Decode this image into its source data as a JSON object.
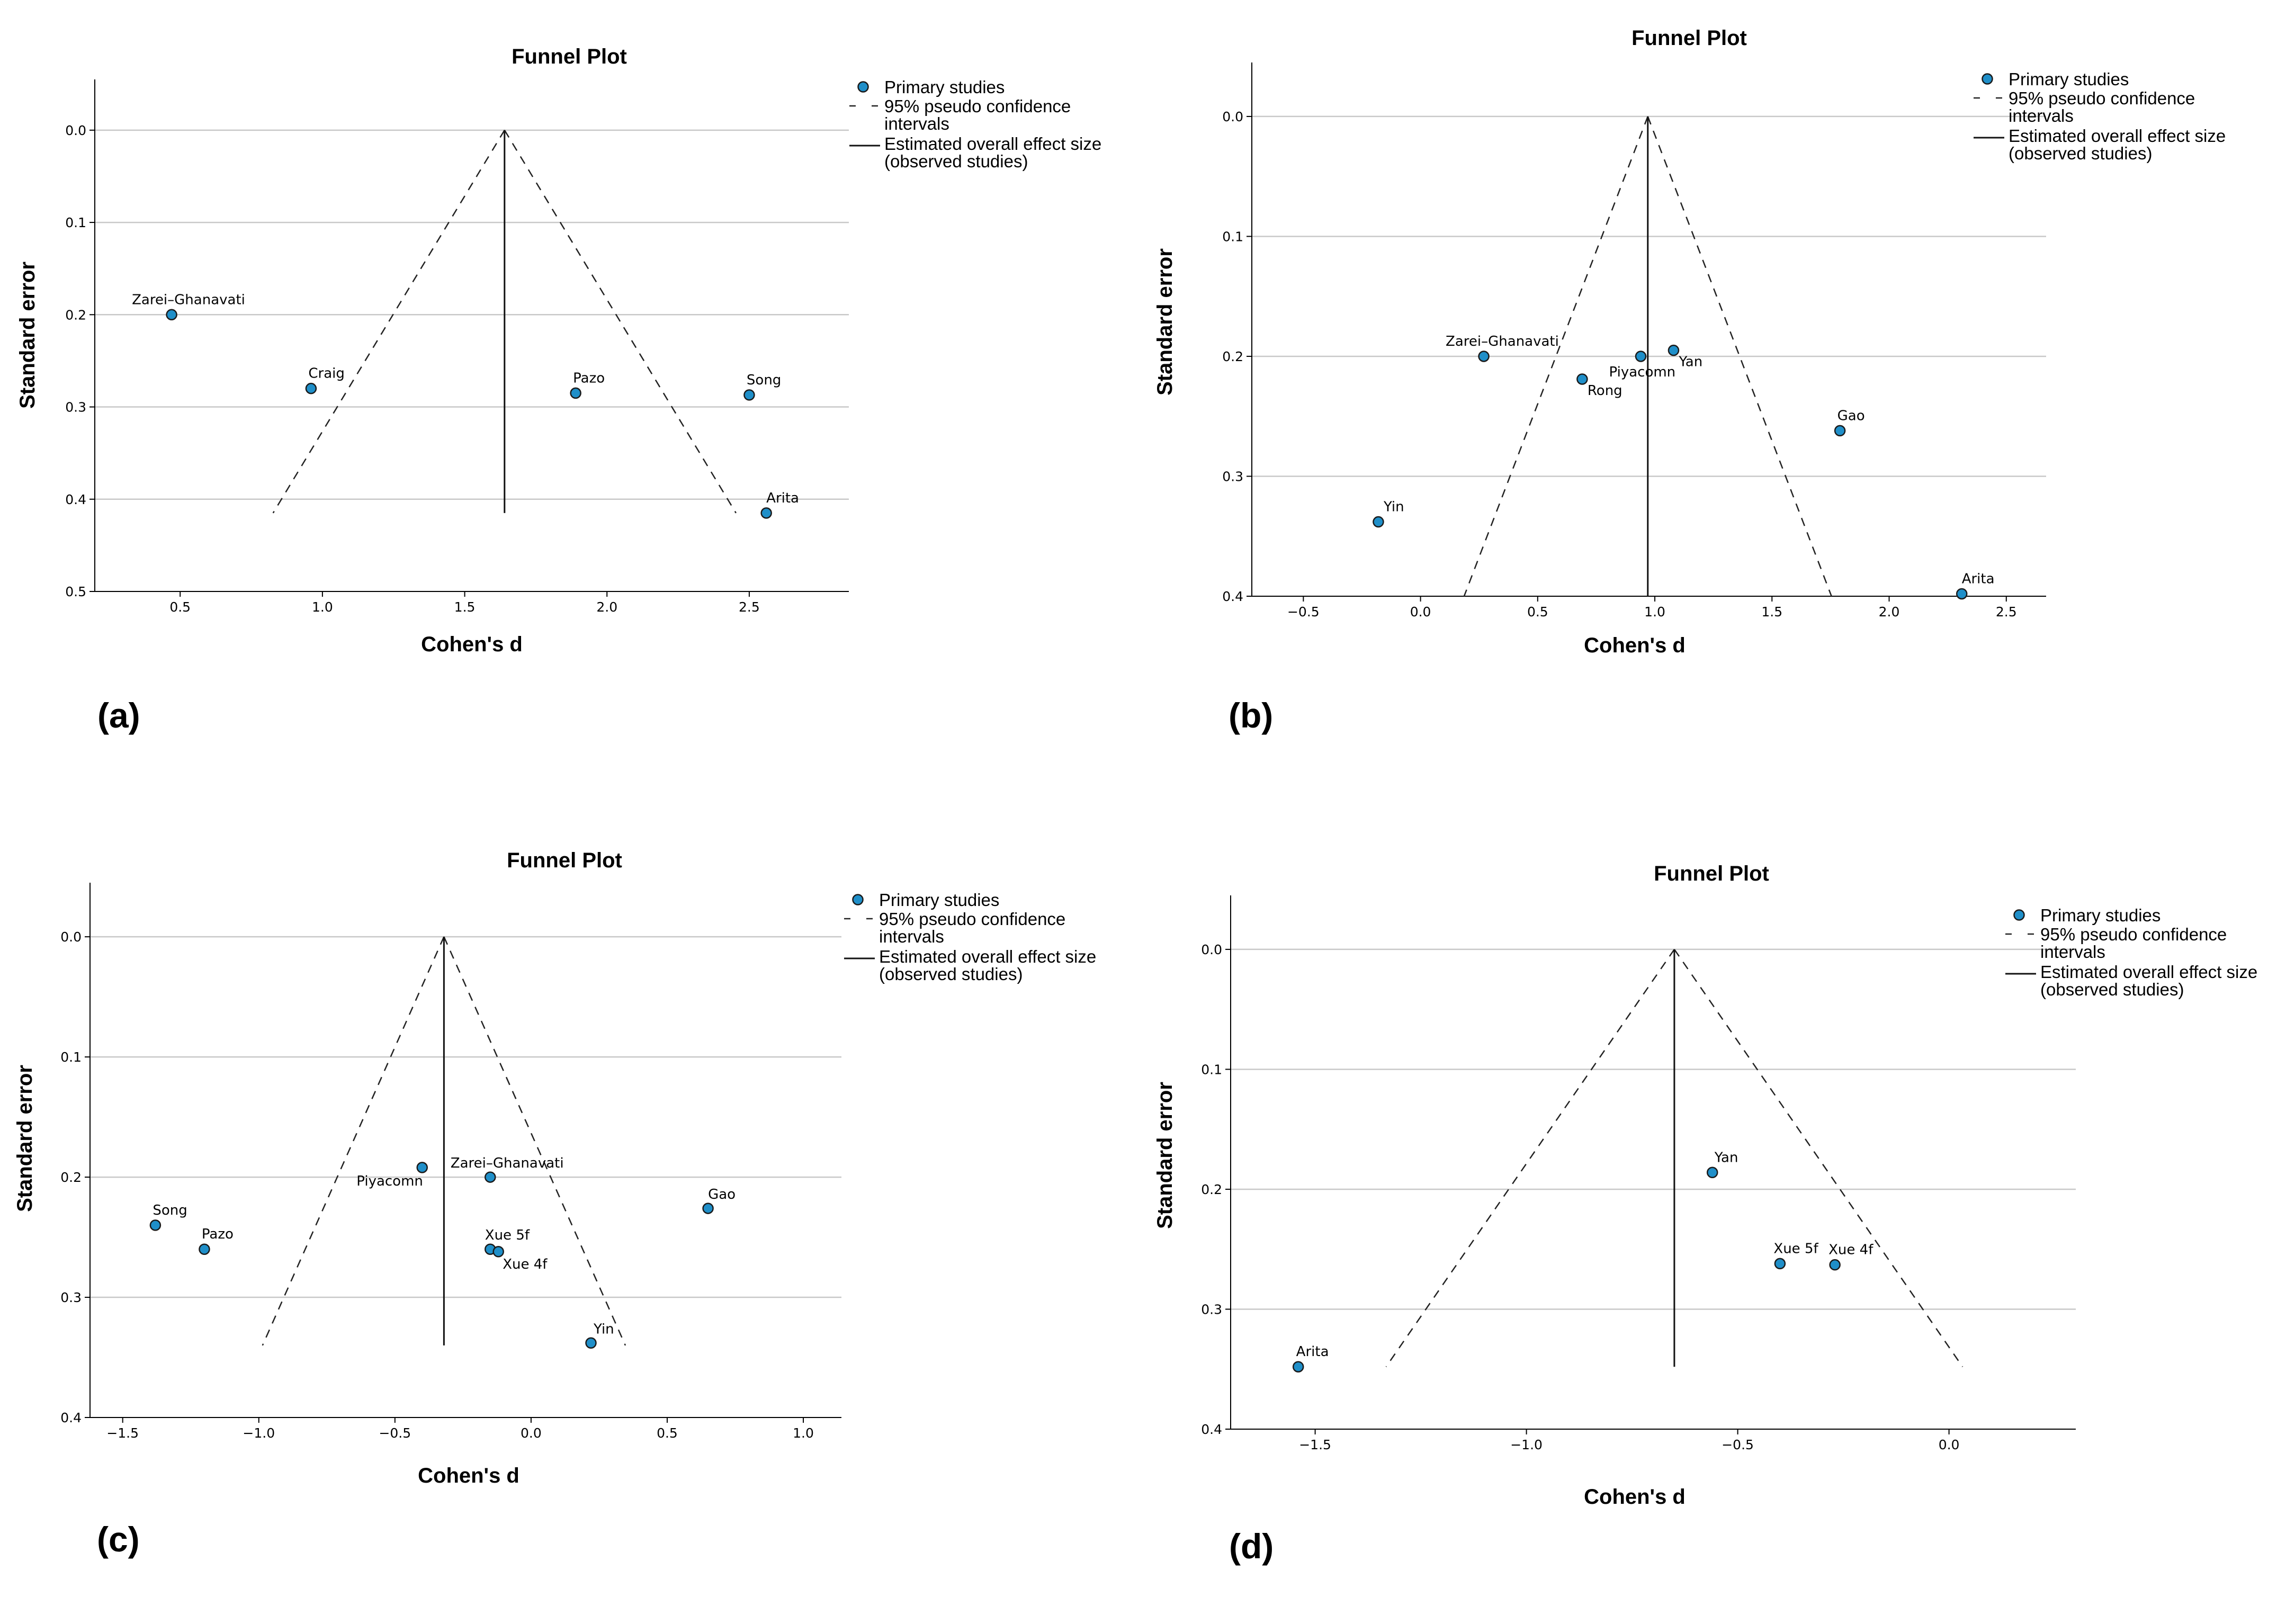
{
  "figure": {
    "panels": [
      {
        "id": "a",
        "label": "(a)"
      },
      {
        "id": "b",
        "label": "(b)"
      },
      {
        "id": "c",
        "label": "(c)"
      },
      {
        "id": "d",
        "label": "(d)"
      }
    ]
  },
  "legend": {
    "primary": "Primary studies",
    "ci_line1": "95% pseudo confidence",
    "ci_line2": "intervals",
    "effect_line1": "Estimated overall effect size",
    "effect_line2": "(observed studies)"
  },
  "colors": {
    "point_fill": "#1f8fc9",
    "point_stroke": "#1a1a1a",
    "grid": "#c8c8c8",
    "axis": "#000000"
  },
  "chart_data": [
    {
      "type": "scatter",
      "title": "Funnel Plot",
      "xlabel": "Cohen's d",
      "ylabel": "Standard error",
      "xlim": [
        0.2,
        2.85
      ],
      "ylim": [
        0.5,
        -0.055
      ],
      "y_inverted": true,
      "xticks": [
        0.5,
        1.0,
        1.5,
        2.0,
        2.5
      ],
      "xtick_labels": [
        "0.5",
        "1.0",
        "1.5",
        "2.0",
        "2.5"
      ],
      "yticks": [
        0.0,
        0.1,
        0.2,
        0.3,
        0.4,
        0.5
      ],
      "ytick_labels": [
        "0.0",
        "0.1",
        "0.2",
        "0.3",
        "0.4",
        "0.5"
      ],
      "points": [
        {
          "label": "Zarei–Ghanavati",
          "x": 0.47,
          "y": 0.2
        },
        {
          "label": "Craig",
          "x": 0.96,
          "y": 0.28
        },
        {
          "label": "Pazo",
          "x": 1.89,
          "y": 0.285
        },
        {
          "label": "Song",
          "x": 2.5,
          "y": 0.287
        },
        {
          "label": "Arita",
          "x": 2.56,
          "y": 0.415
        }
      ],
      "effect": 1.64,
      "se_max": 0.415,
      "legend_entries": [
        "Primary studies",
        "95% pseudo confidence intervals",
        "Estimated overall effect size (observed studies)"
      ]
    },
    {
      "type": "scatter",
      "title": "Funnel Plot",
      "xlabel": "Cohen's d",
      "ylabel": "Standard error",
      "xlim": [
        -0.72,
        2.67
      ],
      "ylim": [
        0.4,
        -0.045
      ],
      "y_inverted": true,
      "xticks": [
        -0.5,
        0.0,
        0.5,
        1.0,
        1.5,
        2.0,
        2.5
      ],
      "xtick_labels": [
        "−0.5",
        "0.0",
        "0.5",
        "1.0",
        "1.5",
        "2.0",
        "2.5"
      ],
      "yticks": [
        0.0,
        0.1,
        0.2,
        0.3,
        0.4
      ],
      "ytick_labels": [
        "0.0",
        "0.1",
        "0.2",
        "0.3",
        "0.4"
      ],
      "points": [
        {
          "label": "Zarei–Ghanavati",
          "x": 0.27,
          "y": 0.2
        },
        {
          "label": "Rong",
          "x": 0.69,
          "y": 0.219
        },
        {
          "label": "Piyacomn",
          "x": 0.94,
          "y": 0.2
        },
        {
          "label": "Yan",
          "x": 1.08,
          "y": 0.195
        },
        {
          "label": "Gao",
          "x": 1.79,
          "y": 0.262
        },
        {
          "label": "Yin",
          "x": -0.18,
          "y": 0.338
        },
        {
          "label": "Arita",
          "x": 2.31,
          "y": 0.398
        }
      ],
      "effect": 0.97,
      "se_max": 0.4,
      "legend_entries": [
        "Primary studies",
        "95% pseudo confidence intervals",
        "Estimated overall effect size (observed studies)"
      ]
    },
    {
      "type": "scatter",
      "title": "Funnel Plot",
      "xlabel": "Cohen's d",
      "ylabel": "Standard error",
      "xlim": [
        -1.62,
        1.14
      ],
      "ylim": [
        0.4,
        -0.045
      ],
      "y_inverted": true,
      "xticks": [
        -1.5,
        -1.0,
        -0.5,
        0.0,
        0.5,
        1.0
      ],
      "xtick_labels": [
        "−1.5",
        "−1.0",
        "−0.5",
        "0.0",
        "0.5",
        "1.0"
      ],
      "yticks": [
        0.0,
        0.1,
        0.2,
        0.3,
        0.4
      ],
      "ytick_labels": [
        "0.0",
        "0.1",
        "0.2",
        "0.3",
        "0.4"
      ],
      "points": [
        {
          "label": "Song",
          "x": -1.38,
          "y": 0.24
        },
        {
          "label": "Pazo",
          "x": -1.2,
          "y": 0.26
        },
        {
          "label": "Piyacomn",
          "x": -0.4,
          "y": 0.192
        },
        {
          "label": "Zarei–Ghanavati",
          "x": -0.15,
          "y": 0.2
        },
        {
          "label": "Xue 5f",
          "x": -0.15,
          "y": 0.26
        },
        {
          "label": "Xue 4f",
          "x": -0.12,
          "y": 0.262
        },
        {
          "label": "Gao",
          "x": 0.65,
          "y": 0.226
        },
        {
          "label": "Yin",
          "x": 0.22,
          "y": 0.338
        }
      ],
      "effect": -0.32,
      "se_max": 0.34,
      "legend_entries": [
        "Primary studies",
        "95% pseudo confidence intervals",
        "Estimated overall effect size (observed studies)"
      ]
    },
    {
      "type": "scatter",
      "title": "Funnel Plot",
      "xlabel": "Cohen's d",
      "ylabel": "Standard error",
      "xlim": [
        -1.7,
        0.3
      ],
      "ylim": [
        0.4,
        -0.045
      ],
      "y_inverted": true,
      "xticks": [
        -1.5,
        -1.0,
        -0.5,
        0.0
      ],
      "xtick_labels": [
        "−1.5",
        "−1.0",
        "−0.5",
        "0.0"
      ],
      "yticks": [
        0.0,
        0.1,
        0.2,
        0.3,
        0.4
      ],
      "ytick_labels": [
        "0.0",
        "0.1",
        "0.2",
        "0.3",
        "0.4"
      ],
      "points": [
        {
          "label": "Yan",
          "x": -0.56,
          "y": 0.186
        },
        {
          "label": "Xue 5f",
          "x": -0.4,
          "y": 0.262
        },
        {
          "label": "Xue 4f",
          "x": -0.27,
          "y": 0.263
        },
        {
          "label": "Arita",
          "x": -1.54,
          "y": 0.348
        }
      ],
      "effect": -0.65,
      "se_max": 0.348,
      "legend_entries": [
        "Primary studies",
        "95% pseudo confidence intervals",
        "Estimated overall effect size (observed studies)"
      ]
    }
  ]
}
